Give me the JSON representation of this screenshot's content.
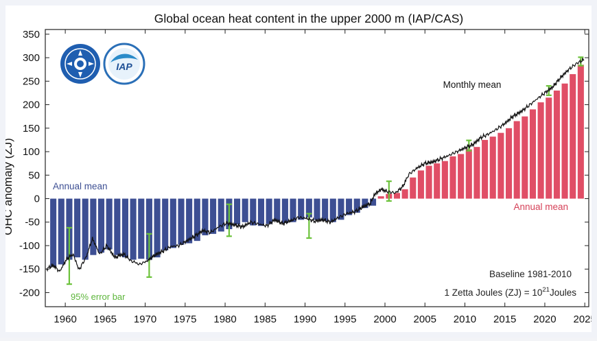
{
  "chart_data": {
    "type": "bar",
    "title": "Global ocean heat content in the upper 2000 m (IAP/CAS)",
    "ylabel": "OHC anomaly (ZJ)",
    "xlabel": "",
    "xlim": [
      1957.5,
      2025.5
    ],
    "ylim": [
      -230,
      360
    ],
    "xticks": [
      1960,
      1965,
      1970,
      1975,
      1980,
      1985,
      1990,
      1995,
      2000,
      2005,
      2010,
      2015,
      2020,
      2025
    ],
    "yticks": [
      -200,
      -150,
      -100,
      -50,
      0,
      50,
      100,
      150,
      200,
      250,
      300,
      350
    ],
    "grid": false,
    "annotations": {
      "annual_mean_left": "Annual mean",
      "annual_mean_right": "Annual mean",
      "monthly_mean": "Monthly mean",
      "error_bar": "95% error bar",
      "baseline": "Baseline 1981-2010",
      "zj_prefix": "1 Zetta Joules (ZJ) = 10",
      "zj_exp": "21",
      "zj_suffix": "Joules"
    },
    "years": [
      1958,
      1959,
      1960,
      1961,
      1962,
      1963,
      1964,
      1965,
      1966,
      1967,
      1968,
      1969,
      1970,
      1971,
      1972,
      1973,
      1974,
      1975,
      1976,
      1977,
      1978,
      1979,
      1980,
      1981,
      1982,
      1983,
      1984,
      1985,
      1986,
      1987,
      1988,
      1989,
      1990,
      1991,
      1992,
      1993,
      1994,
      1995,
      1996,
      1997,
      1998,
      1999,
      2000,
      2001,
      2002,
      2003,
      2004,
      2005,
      2006,
      2007,
      2008,
      2009,
      2010,
      2011,
      2012,
      2013,
      2014,
      2015,
      2016,
      2017,
      2018,
      2019,
      2020,
      2021,
      2022,
      2023,
      2024
    ],
    "annual_mean": [
      -145,
      -140,
      -130,
      -125,
      -130,
      -120,
      -115,
      -108,
      -120,
      -125,
      -130,
      -128,
      -130,
      -125,
      -110,
      -105,
      -98,
      -95,
      -90,
      -78,
      -75,
      -70,
      -65,
      -55,
      -50,
      -57,
      -58,
      -54,
      -48,
      -52,
      -50,
      -45,
      -40,
      -45,
      -47,
      -50,
      -45,
      -35,
      -30,
      -20,
      -15,
      5,
      10,
      12,
      20,
      45,
      60,
      70,
      75,
      80,
      90,
      95,
      105,
      110,
      125,
      132,
      140,
      150,
      165,
      175,
      190,
      205,
      215,
      230,
      245,
      265,
      285
    ],
    "error_bars": [
      {
        "x": 1960.5,
        "low": -182,
        "high": -62
      },
      {
        "x": 1970.5,
        "low": -167,
        "high": -75
      },
      {
        "x": 1980.5,
        "low": -80,
        "high": -12
      },
      {
        "x": 1990.5,
        "low": -84,
        "high": -32
      },
      {
        "x": 2000.5,
        "low": -5,
        "high": 37
      },
      {
        "x": 2010.5,
        "low": 102,
        "high": 124
      },
      {
        "x": 2020.5,
        "low": 220,
        "high": 240
      },
      {
        "x": 2024.5,
        "low": 283,
        "high": 301
      }
    ],
    "monthly_anchor_points": [
      [
        1957.6,
        -150
      ],
      [
        1958.5,
        -142
      ],
      [
        1959.3,
        -155
      ],
      [
        1960.2,
        -128
      ],
      [
        1961.0,
        -118
      ],
      [
        1961.7,
        -152
      ],
      [
        1962.6,
        -125
      ],
      [
        1963.4,
        -85
      ],
      [
        1964.3,
        -118
      ],
      [
        1965.2,
        -100
      ],
      [
        1966.2,
        -125
      ],
      [
        1967.3,
        -118
      ],
      [
        1968.2,
        -132
      ],
      [
        1969.3,
        -140
      ],
      [
        1970.3,
        -132
      ],
      [
        1971.2,
        -120
      ],
      [
        1972.2,
        -112
      ],
      [
        1973.2,
        -102
      ],
      [
        1974.2,
        -100
      ],
      [
        1975.2,
        -90
      ],
      [
        1976.2,
        -80
      ],
      [
        1977.2,
        -68
      ],
      [
        1978.2,
        -72
      ],
      [
        1979.2,
        -60
      ],
      [
        1980.2,
        -52
      ],
      [
        1981.2,
        -56
      ],
      [
        1982.2,
        -60
      ],
      [
        1983.2,
        -50
      ],
      [
        1984.2,
        -54
      ],
      [
        1985.2,
        -58
      ],
      [
        1986.2,
        -45
      ],
      [
        1987.2,
        -53
      ],
      [
        1988.2,
        -47
      ],
      [
        1989.2,
        -40
      ],
      [
        1990.2,
        -42
      ],
      [
        1991.2,
        -48
      ],
      [
        1992.2,
        -45
      ],
      [
        1993.2,
        -50
      ],
      [
        1994.2,
        -40
      ],
      [
        1995.2,
        -32
      ],
      [
        1996.2,
        -28
      ],
      [
        1997.2,
        -18
      ],
      [
        1998.2,
        -10
      ],
      [
        1998.8,
        12
      ],
      [
        1999.5,
        20
      ],
      [
        2000.3,
        15
      ],
      [
        2001.3,
        12
      ],
      [
        2002.2,
        25
      ],
      [
        2003.0,
        52
      ],
      [
        2004.0,
        65
      ],
      [
        2005.0,
        75
      ],
      [
        2006.0,
        78
      ],
      [
        2007.0,
        85
      ],
      [
        2008.0,
        92
      ],
      [
        2009.0,
        100
      ],
      [
        2010.0,
        108
      ],
      [
        2011.0,
        115
      ],
      [
        2012.0,
        130
      ],
      [
        2013.0,
        138
      ],
      [
        2014.0,
        148
      ],
      [
        2015.0,
        160
      ],
      [
        2016.0,
        175
      ],
      [
        2017.0,
        185
      ],
      [
        2018.0,
        198
      ],
      [
        2019.0,
        212
      ],
      [
        2020.0,
        225
      ],
      [
        2021.0,
        238
      ],
      [
        2022.0,
        258
      ],
      [
        2023.0,
        275
      ],
      [
        2024.0,
        288
      ],
      [
        2024.9,
        296
      ]
    ],
    "colors": {
      "negative_bar": "#3d4f93",
      "positive_bar": "#e04e66",
      "error_bar": "#6cc23b",
      "monthly_line": "#111111",
      "annual_mean_left_text": "#3d4f93",
      "annual_mean_right_text": "#d54057",
      "error_bar_text": "#5cb53a"
    }
  },
  "logos": {
    "cas_logo": "CAS emblem",
    "iap_logo": "IAP"
  }
}
